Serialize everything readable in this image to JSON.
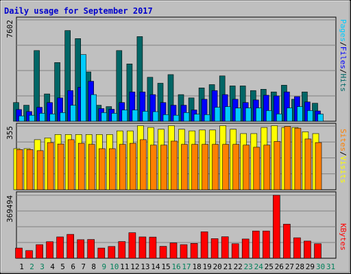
{
  "chart_data": [
    {
      "type": "bar",
      "title": "Daily usage for September 2017",
      "categories": [
        "1",
        "2",
        "3",
        "4",
        "5",
        "6",
        "7",
        "8",
        "9",
        "10",
        "11",
        "12",
        "13",
        "14",
        "15",
        "16",
        "17",
        "18",
        "19",
        "20",
        "21",
        "22",
        "23",
        "24",
        "25",
        "26",
        "27",
        "28",
        "29",
        "30",
        "31"
      ],
      "weekend_days": [
        "2",
        "3",
        "9",
        "10",
        "16",
        "17",
        "23",
        "24",
        "30",
        "31"
      ],
      "y_max_label": "7602",
      "ylim": [
        0,
        7602
      ],
      "grid": true,
      "series": [
        {
          "name": "Hits",
          "color": "#006666",
          "values": [
            1400,
            1200,
            5300,
            2050,
            4400,
            6800,
            6200,
            3700,
            1200,
            1100,
            5300,
            4300,
            6350,
            3300,
            2850,
            3500,
            2000,
            1750,
            2500,
            2750,
            3400,
            2650,
            2650,
            2300,
            2400,
            2200,
            2700,
            1650,
            2200,
            1350,
            0
          ]
        },
        {
          "name": "Files",
          "color": "#0000ff",
          "values": [
            880,
            730,
            1050,
            1400,
            1750,
            2300,
            2550,
            3000,
            950,
            900,
            1400,
            2200,
            2200,
            2000,
            1400,
            1200,
            1200,
            850,
            1650,
            2300,
            2000,
            1650,
            1400,
            1600,
            1950,
            1900,
            2200,
            1850,
            1450,
            770,
            0
          ]
        },
        {
          "name": "Pages",
          "color": "#00ccff",
          "values": [
            400,
            450,
            600,
            550,
            650,
            1200,
            5000,
            2000,
            650,
            600,
            850,
            850,
            750,
            720,
            500,
            450,
            650,
            530,
            500,
            1050,
            1100,
            990,
            1000,
            1000,
            800,
            550,
            1000,
            1100,
            800,
            540,
            0
          ]
        }
      ]
    },
    {
      "type": "bar",
      "y_max_label": "355",
      "ylim": [
        0,
        355
      ],
      "grid": true,
      "series": [
        {
          "name": "Visits",
          "color": "#ffff00",
          "values": [
            229,
            229,
            279,
            289,
            308,
            308,
            308,
            308,
            308,
            308,
            328,
            328,
            357,
            347,
            337,
            357,
            337,
            328,
            333,
            333,
            357,
            337,
            313,
            313,
            347,
            357,
            347,
            347,
            323,
            313,
            0
          ]
        },
        {
          "name": "Sites",
          "color": "#ff8000",
          "values": [
            224,
            224,
            218,
            263,
            255,
            279,
            259,
            253,
            229,
            229,
            253,
            259,
            279,
            249,
            249,
            271,
            253,
            253,
            253,
            253,
            253,
            253,
            249,
            237,
            249,
            269,
            353,
            343,
            283,
            263,
            0
          ]
        }
      ]
    },
    {
      "type": "bar",
      "y_max_label": "369494",
      "ylim": [
        0,
        369494
      ],
      "grid": true,
      "series": [
        {
          "name": "KBytes",
          "color": "#ff0000",
          "values": [
            60000,
            45000,
            80000,
            97000,
            125000,
            140000,
            109000,
            110000,
            60000,
            69000,
            98000,
            150000,
            125000,
            124000,
            70000,
            90000,
            80000,
            87000,
            155000,
            115000,
            126000,
            85000,
            113000,
            160000,
            160000,
            369494,
            200000,
            120000,
            101000,
            85000,
            0
          ]
        }
      ]
    }
  ]
}
